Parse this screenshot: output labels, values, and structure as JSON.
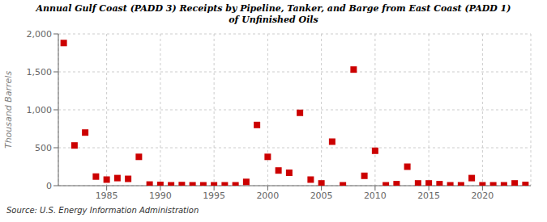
{
  "chart_data": {
    "type": "scatter",
    "title": "Annual Gulf Coast (PADD 3) Receipts by Pipeline, Tanker, and Barge from East Coast (PADD 1)\nof Unfinished Oils",
    "ylabel": "Thousand Barrels",
    "annotations": [
      "Source: U.S. Energy Information Administration"
    ],
    "x": [
      1981,
      1982,
      1983,
      1984,
      1985,
      1986,
      1987,
      1988,
      1989,
      1990,
      1991,
      1992,
      1993,
      1994,
      1995,
      1996,
      1997,
      1998,
      1999,
      2000,
      2001,
      2002,
      2003,
      2004,
      2005,
      2006,
      2007,
      2008,
      2009,
      2010,
      2011,
      2012,
      2013,
      2014,
      2015,
      2016,
      2017,
      2018,
      2019,
      2020,
      2021,
      2022,
      2023,
      2024
    ],
    "values": [
      1880,
      530,
      700,
      120,
      80,
      100,
      90,
      380,
      15,
      10,
      5,
      8,
      5,
      5,
      5,
      5,
      5,
      50,
      800,
      380,
      200,
      170,
      960,
      80,
      30,
      580,
      5,
      1530,
      130,
      460,
      5,
      20,
      250,
      30,
      30,
      20,
      5,
      5,
      100,
      5,
      5,
      5,
      30,
      10
    ],
    "color": "#cc0000",
    "marker": "square",
    "xlim": [
      1980.5,
      2024.5
    ],
    "xticks": [
      1985,
      1990,
      1995,
      2000,
      2005,
      2010,
      2015,
      2020
    ],
    "ylim": [
      0,
      2000
    ],
    "yticks": [
      0,
      500,
      {
        "value": 1000,
        "label": "1,000"
      },
      {
        "value": 1500,
        "label": "1,500"
      },
      {
        "value": 2000,
        "label": "2,000"
      }
    ],
    "grid": true
  }
}
